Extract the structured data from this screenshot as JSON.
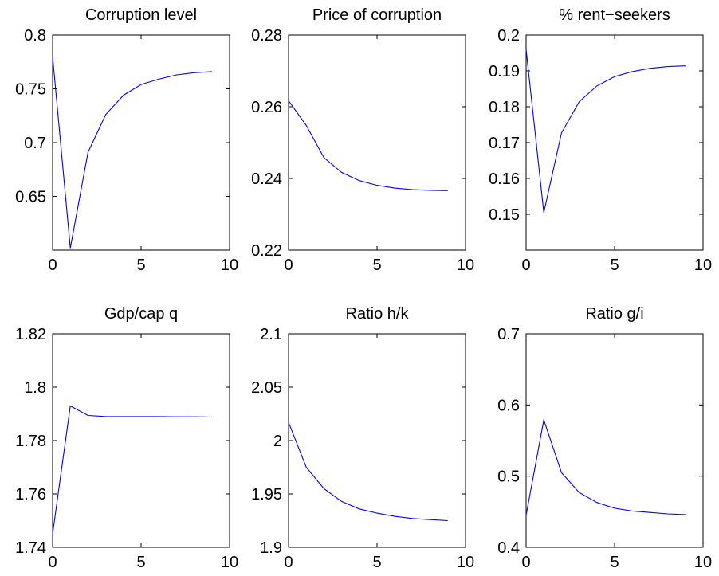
{
  "colors": {
    "series": "#0000ff",
    "axes": "#000000",
    "background": "#ffffff"
  },
  "chart_data": [
    {
      "type": "line",
      "title": "Corruption level",
      "xlim": [
        0,
        10
      ],
      "ylim": [
        0.6,
        0.8
      ],
      "xticks": [
        0,
        5,
        10
      ],
      "xtick_labels": [
        "0",
        "5",
        "10"
      ],
      "yticks": [
        0.65,
        0.7,
        0.75,
        0.8
      ],
      "ytick_labels": [
        "0.65",
        "0.7",
        "0.75",
        "0.8"
      ],
      "grid": false,
      "x": [
        0,
        1,
        2,
        3,
        4,
        5,
        6,
        7,
        8,
        9
      ],
      "y": [
        0.78,
        0.602,
        0.691,
        0.726,
        0.744,
        0.754,
        0.759,
        0.763,
        0.765,
        0.766
      ]
    },
    {
      "type": "line",
      "title": "Price of corruption",
      "xlim": [
        0,
        10
      ],
      "ylim": [
        0.22,
        0.28
      ],
      "xticks": [
        0,
        5,
        10
      ],
      "xtick_labels": [
        "0",
        "5",
        "10"
      ],
      "yticks": [
        0.22,
        0.24,
        0.26,
        0.28
      ],
      "ytick_labels": [
        "0.22",
        "0.24",
        "0.26",
        "0.28"
      ],
      "grid": false,
      "x": [
        0,
        1,
        2,
        3,
        4,
        5,
        6,
        7,
        8,
        9
      ],
      "y": [
        0.2617,
        0.2548,
        0.2458,
        0.2417,
        0.2394,
        0.2381,
        0.2373,
        0.2369,
        0.2367,
        0.2366
      ]
    },
    {
      "type": "line",
      "title": "% rent−seekers",
      "xlim": [
        0,
        10
      ],
      "ylim": [
        0.14,
        0.2
      ],
      "xticks": [
        0,
        5,
        10
      ],
      "xtick_labels": [
        "0",
        "5",
        "10"
      ],
      "yticks": [
        0.15,
        0.16,
        0.17,
        0.18,
        0.19,
        0.2
      ],
      "ytick_labels": [
        "0.15",
        "0.16",
        "0.17",
        "0.18",
        "0.19",
        "0.2"
      ],
      "grid": false,
      "x": [
        0,
        1,
        2,
        3,
        4,
        5,
        6,
        7,
        8,
        9
      ],
      "y": [
        0.196,
        0.1505,
        0.1727,
        0.1814,
        0.1858,
        0.1884,
        0.1898,
        0.1907,
        0.1912,
        0.1914
      ]
    },
    {
      "type": "line",
      "title": "Gdp/cap q",
      "xlim": [
        0,
        10
      ],
      "ylim": [
        1.74,
        1.82
      ],
      "xticks": [
        0,
        5,
        10
      ],
      "xtick_labels": [
        "0",
        "5",
        "10"
      ],
      "yticks": [
        1.74,
        1.76,
        1.78,
        1.8,
        1.82
      ],
      "ytick_labels": [
        "1.74",
        "1.76",
        "1.78",
        "1.8",
        "1.82"
      ],
      "grid": false,
      "x": [
        0,
        1,
        2,
        3,
        4,
        5,
        6,
        7,
        8,
        9
      ],
      "y": [
        1.745,
        1.793,
        1.7894,
        1.789,
        1.789,
        1.789,
        1.789,
        1.7889,
        1.7889,
        1.7888
      ]
    },
    {
      "type": "line",
      "title": "Ratio h/k",
      "xlim": [
        0,
        10
      ],
      "ylim": [
        1.9,
        2.1
      ],
      "xticks": [
        0,
        5,
        10
      ],
      "xtick_labels": [
        "0",
        "5",
        "10"
      ],
      "yticks": [
        1.9,
        1.95,
        2,
        2.05,
        2.1
      ],
      "ytick_labels": [
        "1.9",
        "1.95",
        "2",
        "2.05",
        "2.1"
      ],
      "grid": false,
      "x": [
        0,
        1,
        2,
        3,
        4,
        5,
        6,
        7,
        8,
        9
      ],
      "y": [
        2.017,
        1.975,
        1.955,
        1.943,
        1.936,
        1.932,
        1.929,
        1.927,
        1.926,
        1.925
      ]
    },
    {
      "type": "line",
      "title": "Ratio g/i",
      "xlim": [
        0,
        10
      ],
      "ylim": [
        0.4,
        0.7
      ],
      "xticks": [
        0,
        5,
        10
      ],
      "xtick_labels": [
        "0",
        "5",
        "10"
      ],
      "yticks": [
        0.4,
        0.5,
        0.6,
        0.7
      ],
      "ytick_labels": [
        "0.4",
        "0.5",
        "0.6",
        "0.7"
      ],
      "grid": false,
      "x": [
        0,
        1,
        2,
        3,
        4,
        5,
        6,
        7,
        8,
        9
      ],
      "y": [
        0.445,
        0.579,
        0.505,
        0.477,
        0.463,
        0.455,
        0.451,
        0.449,
        0.447,
        0.446
      ]
    }
  ]
}
